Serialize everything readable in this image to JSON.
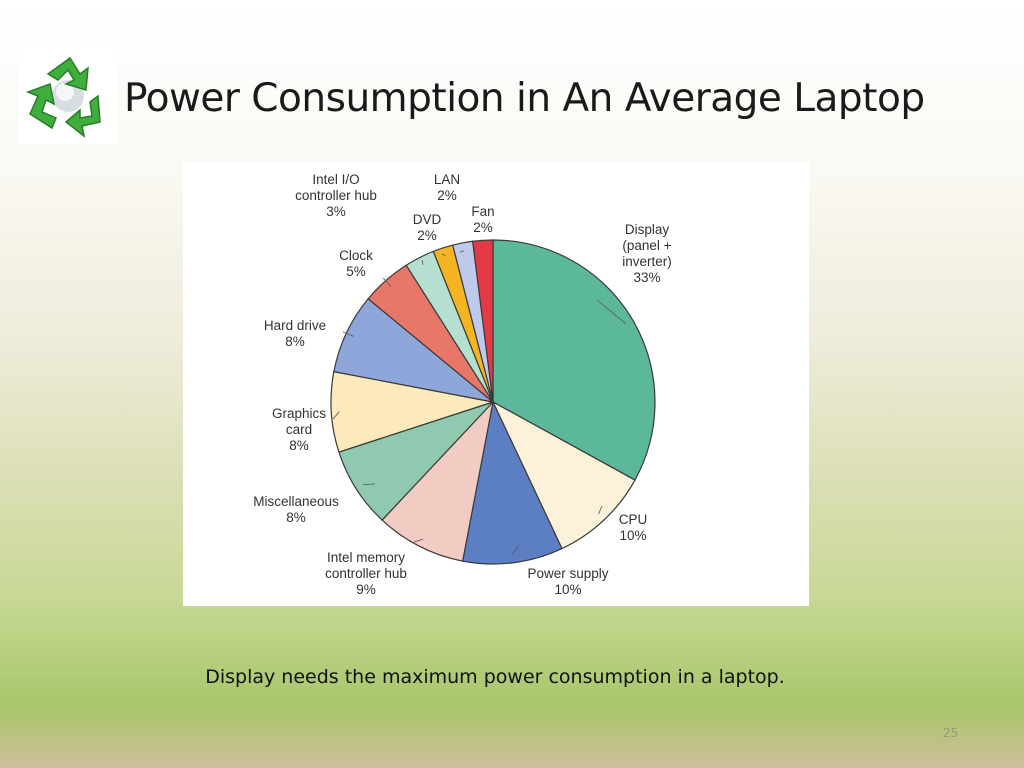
{
  "slide": {
    "title": "Power Consumption in An Average Laptop",
    "caption": "Display needs the maximum power consumption in a laptop.",
    "page_number": "25",
    "logo_icon": "recycle-icon"
  },
  "chart_data": {
    "type": "pie",
    "title": "",
    "start_angle_deg": 0,
    "direction": "clockwise",
    "slices": [
      {
        "label": [
          "Display",
          "(panel +",
          "inverter)"
        ],
        "percent_label": "33%",
        "value": 33,
        "color": "#5cb89a"
      },
      {
        "label": [
          "CPU"
        ],
        "percent_label": "10%",
        "value": 10,
        "color": "#fdf2d9"
      },
      {
        "label": [
          "Power supply"
        ],
        "percent_label": "10%",
        "value": 10,
        "color": "#5c7fc4"
      },
      {
        "label": [
          "Intel memory",
          "controller hub"
        ],
        "percent_label": "9%",
        "value": 9,
        "color": "#f2ccc3"
      },
      {
        "label": [
          "Miscellaneous"
        ],
        "percent_label": "8%",
        "value": 8,
        "color": "#8fc9b0"
      },
      {
        "label": [
          "Graphics",
          "card"
        ],
        "percent_label": "8%",
        "value": 8,
        "color": "#fde9b9"
      },
      {
        "label": [
          "Hard drive"
        ],
        "percent_label": "8%",
        "value": 8,
        "color": "#8ea6d9"
      },
      {
        "label": [
          "Clock"
        ],
        "percent_label": "5%",
        "value": 5,
        "color": "#e8776a"
      },
      {
        "label": [
          "Intel I/O",
          "controller hub"
        ],
        "percent_label": "3%",
        "value": 3,
        "color": "#b5dfcf"
      },
      {
        "label": [
          "DVD"
        ],
        "percent_label": "2%",
        "value": 2,
        "color": "#f5b522"
      },
      {
        "label": [
          "LAN"
        ],
        "percent_label": "2%",
        "value": 2,
        "color": "#bfc9ec"
      },
      {
        "label": [
          "Fan"
        ],
        "percent_label": "2%",
        "value": 2,
        "color": "#e63946"
      }
    ]
  }
}
